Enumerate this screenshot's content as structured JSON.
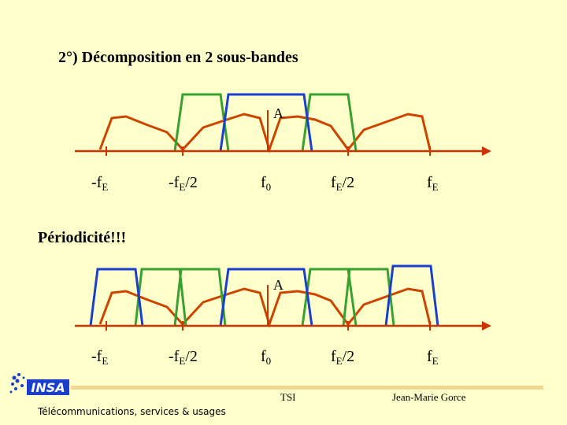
{
  "slide": {
    "title": "2°) Décomposition en 2 sous-bandes",
    "periodicity_note": "Périodicité!!!",
    "amplitude_label": "A",
    "freq_labels": [
      {
        "pre": "-f",
        "sub": "E",
        "post": ""
      },
      {
        "pre": "-f",
        "sub": "E",
        "post": "/2"
      },
      {
        "pre": "f",
        "sub": "0",
        "post": ""
      },
      {
        "pre": "f",
        "sub": "E",
        "post": "/2"
      },
      {
        "pre": "f",
        "sub": "E",
        "post": ""
      }
    ]
  },
  "footer": {
    "left": "Télécommunications, services & usages",
    "center": "TSI",
    "right": "Jean-Marie Gorce",
    "logo_text": "INSA"
  },
  "colors": {
    "axis": "#cc3300",
    "spectrum": "#cc4400",
    "lowband": "#1a3fcc",
    "highband": "#3aa030",
    "background": "#ffffcc"
  },
  "icons": {
    "logo": "insa-logo-icon",
    "axis_arrow": "arrow-right-icon"
  }
}
